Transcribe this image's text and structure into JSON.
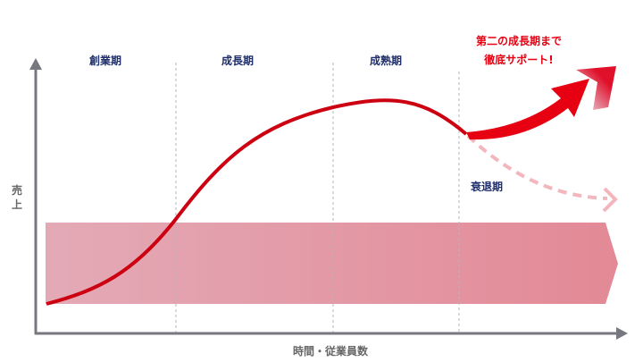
{
  "phases": [
    "創業期",
    "成長期",
    "成熟期",
    "衰退期"
  ],
  "y_axis_label": [
    "売",
    "上"
  ],
  "x_axis_label": "時間・従業員数",
  "callout": [
    "第二の成長期まで",
    "徹底サポート!"
  ],
  "colors": {
    "curve": "#cc0011",
    "callout": "#e60012",
    "phase_text": "#1f2f6b",
    "decline": "#f4b6bd",
    "band_start": "#e3aab6",
    "band_end": "#e38996",
    "axis": "#77777f"
  }
}
